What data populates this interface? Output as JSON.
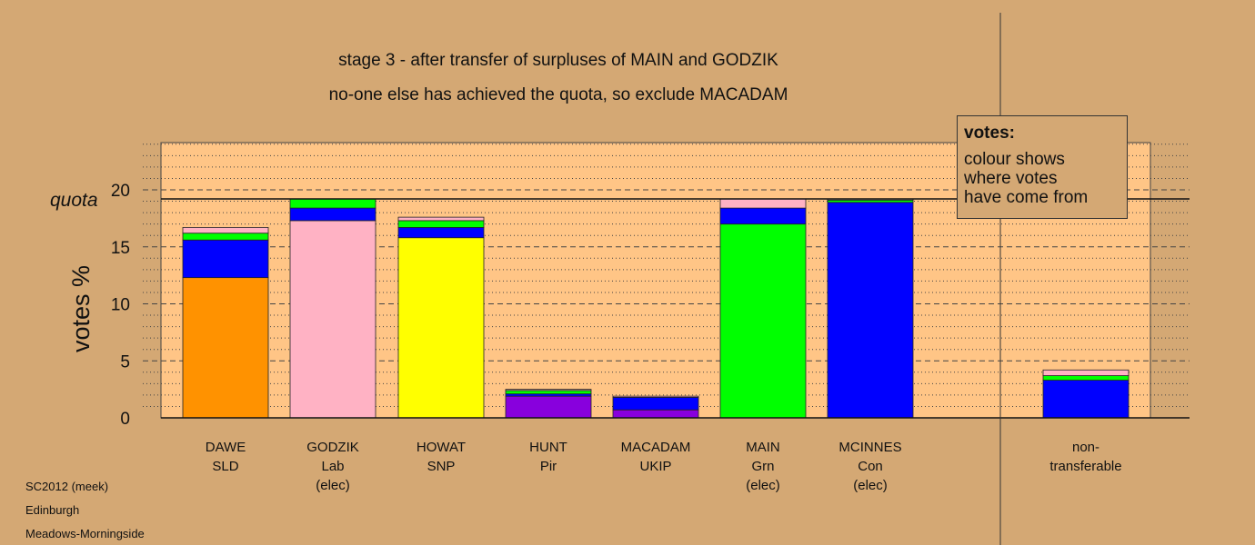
{
  "chart_data": {
    "type": "bar",
    "stacked": true,
    "title": "stage 3 - after transfer of surpluses of MAIN and GODZIK",
    "subtitle": "no-one else has achieved the quota, so exclude MACADAM",
    "ylabel": "votes %",
    "ylim": [
      0,
      24
    ],
    "yticks": [
      0,
      5,
      10,
      15,
      20
    ],
    "quota": 19.2,
    "quota_label": "quota",
    "grid": "dashed major lines every 5, dotted minor lines every 1",
    "bars": [
      {
        "name": "DAWE",
        "party": "SLD",
        "status": "",
        "segments": [
          {
            "value": 12.3,
            "color": "#ff9200"
          },
          {
            "value": 3.3,
            "color": "#0000ff"
          },
          {
            "value": 0.6,
            "color": "#00ff00"
          },
          {
            "value": 0.5,
            "color": "#ffb2c4"
          }
        ]
      },
      {
        "name": "GODZIK",
        "party": "Lab",
        "status": "(elec)",
        "segments": [
          {
            "value": 17.3,
            "color": "#ffb2c4"
          },
          {
            "value": 1.1,
            "color": "#0000ff"
          },
          {
            "value": 0.8,
            "color": "#00ff00"
          }
        ]
      },
      {
        "name": "HOWAT",
        "party": "SNP",
        "status": "",
        "segments": [
          {
            "value": 15.8,
            "color": "#ffff00"
          },
          {
            "value": 0.9,
            "color": "#0000ff"
          },
          {
            "value": 0.6,
            "color": "#00ff00"
          },
          {
            "value": 0.3,
            "color": "#ffb2c4"
          }
        ]
      },
      {
        "name": "HUNT",
        "party": "Pir",
        "status": "",
        "segments": [
          {
            "value": 1.9,
            "color": "#8800dd"
          },
          {
            "value": 0.2,
            "color": "#0000ff"
          },
          {
            "value": 0.3,
            "color": "#00ff00"
          },
          {
            "value": 0.1,
            "color": "#ffb2c4"
          }
        ]
      },
      {
        "name": "MACADAM",
        "party": "UKIP",
        "status": "",
        "segments": [
          {
            "value": 0.7,
            "color": "#8800dd"
          },
          {
            "value": 1.1,
            "color": "#0000ff"
          },
          {
            "value": 0.1,
            "color": "#ffb2c4"
          }
        ]
      },
      {
        "name": "MAIN",
        "party": "Grn",
        "status": "(elec)",
        "segments": [
          {
            "value": 17.0,
            "color": "#00ff00"
          },
          {
            "value": 1.4,
            "color": "#0000ff"
          },
          {
            "value": 0.8,
            "color": "#ffb2c4"
          }
        ]
      },
      {
        "name": "MCINNES",
        "party": "Con",
        "status": "(elec)",
        "segments": [
          {
            "value": 18.9,
            "color": "#0000ff"
          },
          {
            "value": 0.2,
            "color": "#00ff00"
          },
          {
            "value": 0.1,
            "color": "#ffb2c4"
          }
        ]
      },
      {
        "name": "non-",
        "party": "transferable",
        "status": "",
        "segments": [
          {
            "value": 3.3,
            "color": "#0000ff"
          },
          {
            "value": 0.4,
            "color": "#00ff00"
          },
          {
            "value": 0.5,
            "color": "#ffb2c4"
          }
        ]
      }
    ]
  },
  "legend": {
    "title": "votes:",
    "line1": "colour shows",
    "line2": "where votes",
    "line3": "have come from"
  },
  "footer": {
    "line1": "SC2012 (meek)",
    "line2": "Edinburgh",
    "line3": "Meadows-Morningside"
  }
}
